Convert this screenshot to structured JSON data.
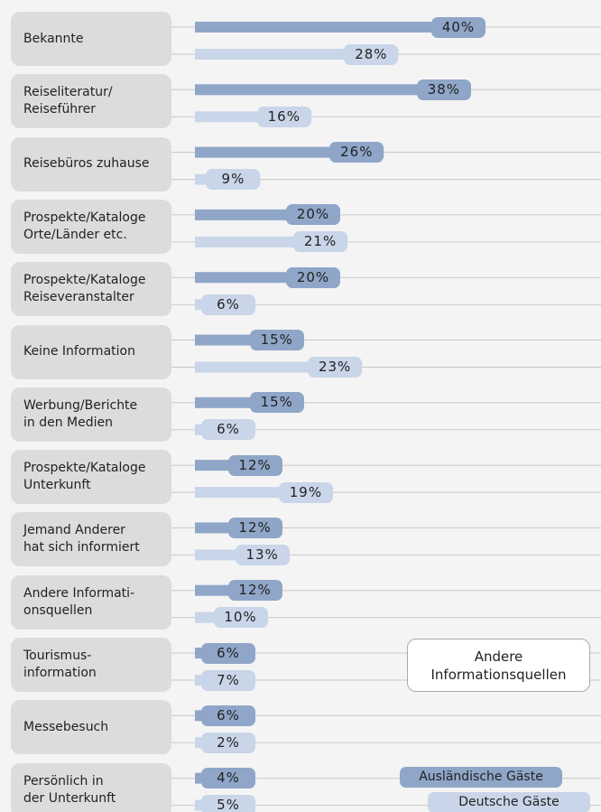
{
  "chart_data": {
    "type": "bar",
    "orientation": "horizontal",
    "categories": [
      "Bekannte",
      "Reiseliteratur/\nReiseführer",
      "Reisebüros zuhause",
      "Prospekte/Kataloge\nOrte/Länder etc.",
      "Prospekte/Kataloge\nReiseveranstalter",
      "Keine Information",
      "Werbung/Berichte\nin den Medien",
      "Prospekte/Kataloge\nUnterkunft",
      "Jemand Anderer\nhat sich informiert",
      "Andere Informati-\nonsquellen",
      "Tourismus-\ninformation",
      "Messebesuch",
      "Persönlich in\nder Unterkunft"
    ],
    "series": [
      {
        "name": "Ausländische Gäste",
        "color": "#8fa6c8",
        "values": [
          40,
          38,
          26,
          20,
          20,
          15,
          15,
          12,
          12,
          12,
          6,
          6,
          4
        ],
        "value_labels": [
          "40%",
          "38%",
          "26%",
          "20%",
          "20%",
          "15%",
          "15%",
          "12%",
          "12%",
          "12%",
          "6%",
          "6%",
          "4%"
        ]
      },
      {
        "name": "Deutsche Gäste",
        "color": "#c9d5e8",
        "values": [
          28,
          16,
          9,
          21,
          6,
          23,
          6,
          19,
          13,
          10,
          7,
          2,
          5
        ],
        "value_labels": [
          "28%",
          "16%",
          "9%",
          "21%",
          "6%",
          "23%",
          "6%",
          "19%",
          "13%",
          "10%",
          "7%",
          "2%",
          "5%"
        ]
      }
    ],
    "legend_title": "Andere\nInformationsquellen",
    "legend_position": "lower right"
  }
}
